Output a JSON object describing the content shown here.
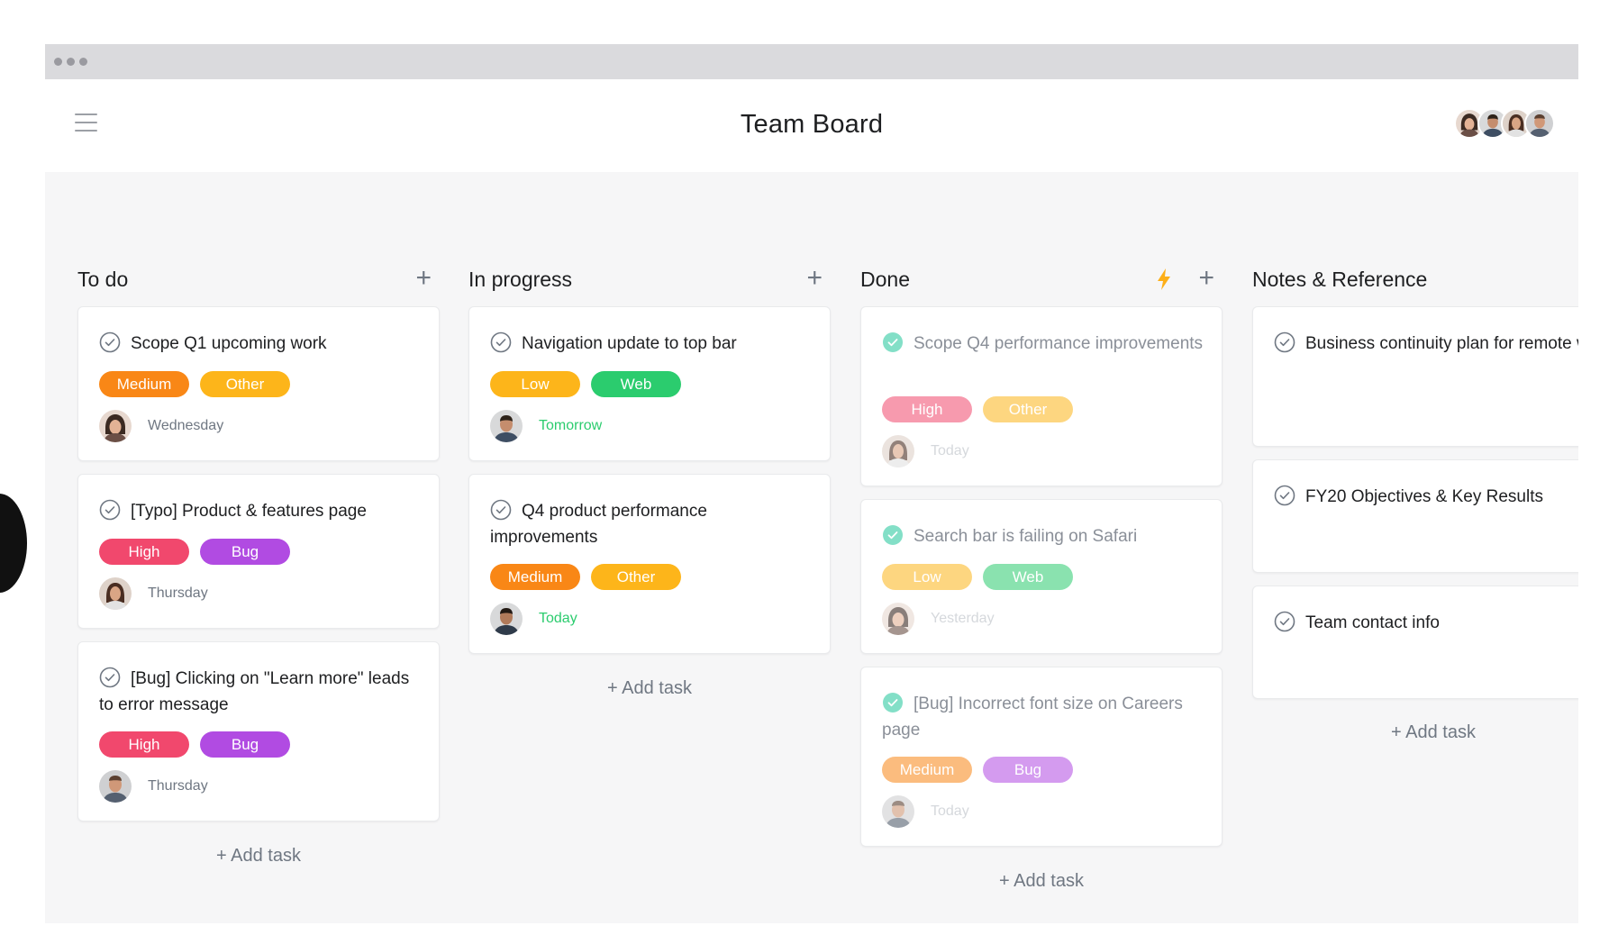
{
  "app": {
    "title": "Team Board"
  },
  "colors": {
    "red": "#f1486d",
    "orange": "#f98716",
    "yellow": "#fdb51a",
    "purple": "#b14be2",
    "green": "#2bcc6e",
    "teal_done": "#5ad4b4",
    "bolt": "#fdaf18"
  },
  "header": {
    "menu_icon": "hamburger-menu-icon",
    "avatars": [
      "member-1",
      "member-2",
      "member-3",
      "member-4"
    ]
  },
  "columns": [
    {
      "title": "To do",
      "add_task": "+ Add task",
      "cards": [
        {
          "title": "Scope Q1 upcoming work",
          "tags": [
            "Medium",
            "Other"
          ],
          "date": "Wednesday"
        },
        {
          "title": "[Typo] Product & features page",
          "tags": [
            "High",
            "Bug"
          ],
          "date": "Thursday"
        },
        {
          "title": "[Bug] Clicking on \"Learn more\" leads to error message",
          "tags": [
            "High",
            "Bug"
          ],
          "date": "Thursday"
        }
      ]
    },
    {
      "title": "In progress",
      "add_task": "+ Add task",
      "cards": [
        {
          "title": "Navigation update to top bar",
          "tags": [
            "Low",
            "Web"
          ],
          "date": "Tomorrow"
        },
        {
          "title": "Q4 product performance improvements",
          "tags": [
            "Medium",
            "Other"
          ],
          "date": "Today"
        }
      ]
    },
    {
      "title": "Done",
      "add_task": "+ Add task",
      "cards": [
        {
          "title": "Scope Q4 performance improvements",
          "tags": [
            "High",
            "Other"
          ],
          "date": "Today"
        },
        {
          "title": "Search bar is failing on Safari",
          "tags": [
            "Low",
            "Web"
          ],
          "date": "Yesterday"
        },
        {
          "title": "[Bug] Incorrect font size on Careers page",
          "tags": [
            "Medium",
            "Bug"
          ],
          "date": "Today"
        }
      ]
    },
    {
      "title": "Notes & Reference",
      "add_task": "+ Add task",
      "cards": [
        {
          "title": "Business continuity plan for remote work"
        },
        {
          "title": "FY20 Objectives & Key Results"
        },
        {
          "title": "Team contact info"
        }
      ]
    }
  ]
}
